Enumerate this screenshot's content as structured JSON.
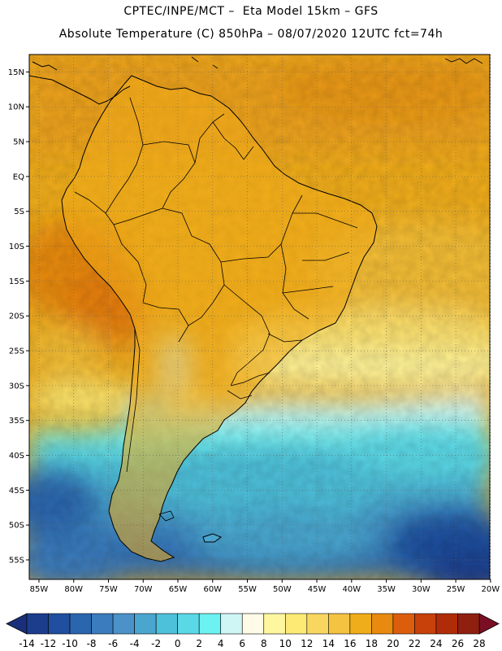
{
  "header": {
    "line1": "CPTEC/INPE/MCT –  Eta Model 15km – GFS",
    "line2": "Absolute Temperature (C) 850hPa – 08/07/2020 12UTC fct=74h"
  },
  "map": {
    "lat_labels": [
      "15N",
      "10N",
      "5N",
      "EQ",
      "5S",
      "10S",
      "15S",
      "20S",
      "25S",
      "30S",
      "35S",
      "40S",
      "45S",
      "50S",
      "55S"
    ],
    "lat_values": [
      15,
      10,
      5,
      0,
      -5,
      -10,
      -15,
      -20,
      -25,
      -30,
      -35,
      -40,
      -45,
      -50,
      -55
    ],
    "lon_labels": [
      "85W",
      "80W",
      "75W",
      "70W",
      "65W",
      "60W",
      "55W",
      "50W",
      "45W",
      "40W",
      "35W",
      "30W",
      "25W",
      "20W"
    ],
    "lon_values": [
      -85,
      -80,
      -75,
      -70,
      -65,
      -60,
      -55,
      -50,
      -45,
      -40,
      -35,
      -30,
      -25,
      -20
    ],
    "lat_range": [
      -57.8,
      17.5
    ],
    "lon_range": [
      -86.4,
      -20.1
    ]
  },
  "colorbar": {
    "ticks": [
      "-14",
      "-12",
      "-10",
      "-8",
      "-6",
      "-4",
      "-2",
      "0",
      "2",
      "4",
      "6",
      "8",
      "10",
      "12",
      "14",
      "16",
      "18",
      "20",
      "22",
      "24",
      "26",
      "28"
    ],
    "colors": [
      "#1c3d8c",
      "#1f4f9e",
      "#2a66ae",
      "#3a7cbd",
      "#4a92c8",
      "#4aa6cf",
      "#4dc0da",
      "#5ad8e6",
      "#6cf2f0",
      "#cff5f5",
      "#fffbe6",
      "#fff7a0",
      "#fdea75",
      "#f9d660",
      "#f4c341",
      "#f0ad1b",
      "#e88a0f",
      "#dc5e0c",
      "#c8400a",
      "#b02c09",
      "#8f2010"
    ],
    "left_extension": "#1a2f7a",
    "right_extension": "#7a0f24"
  },
  "colors": {
    "land_outline": "#000000",
    "grid": "#666666"
  }
}
